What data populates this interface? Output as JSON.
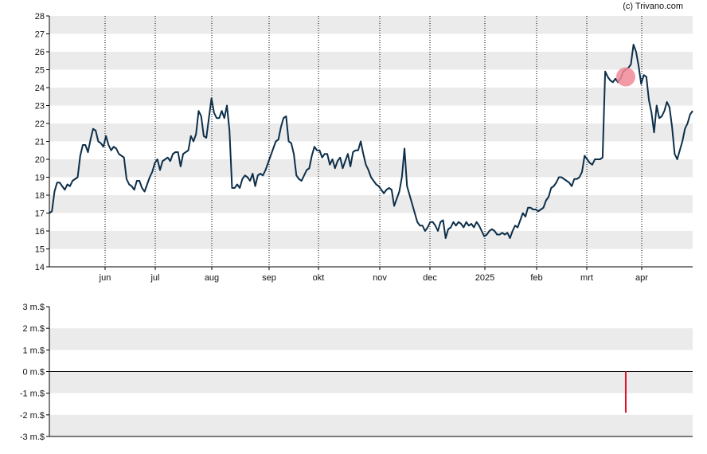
{
  "copyright": "(c) Trivano.com",
  "colors": {
    "price_line": "#0d2f4a",
    "band": "#ebebeb",
    "marker": "#f08a96",
    "bar": "#e0102a",
    "axis": "#000000",
    "vline": "#000000"
  },
  "chart_data": [
    {
      "type": "line",
      "title": "",
      "xlabel": "",
      "ylabel": "",
      "ylim": [
        14,
        28
      ],
      "y_ticks": [
        "14",
        "15",
        "16",
        "17",
        "18",
        "19",
        "20",
        "21",
        "22",
        "23",
        "24",
        "25",
        "26",
        "27",
        "28"
      ],
      "x_ticks": [
        "jun",
        "jul",
        "aug",
        "sep",
        "okt",
        "nov",
        "dec",
        "2025",
        "feb",
        "mrt",
        "apr"
      ],
      "grid": "alternating horizontal bands, dotted vertical lines at month starts",
      "series": [
        {
          "values": [
            17.0,
            17.1,
            18.2,
            18.7,
            18.7,
            18.5,
            18.3,
            18.6,
            18.5,
            18.8,
            18.9,
            19.0,
            20.2,
            20.8,
            20.8,
            20.4,
            21.1,
            21.7,
            21.6,
            21.0,
            20.9,
            20.7,
            21.3,
            20.8,
            20.5,
            20.7,
            20.6,
            20.3,
            20.2,
            20.1,
            18.9,
            18.6,
            18.5,
            18.3,
            18.8,
            18.8,
            18.4,
            18.2,
            18.6,
            19.0,
            19.3,
            19.8,
            20.0,
            19.4,
            19.9,
            20.0,
            20.1,
            19.9,
            20.3,
            20.4,
            20.4,
            19.6,
            20.3,
            20.4,
            20.5,
            21.3,
            21.0,
            21.4,
            22.7,
            22.4,
            21.3,
            21.2,
            22.3,
            23.4,
            22.6,
            22.3,
            22.3,
            22.7,
            22.3,
            23.0,
            21.6,
            18.4,
            18.4,
            18.6,
            18.4,
            18.9,
            19.1,
            19.0,
            18.8,
            19.2,
            18.5,
            19.1,
            19.2,
            19.1,
            19.4,
            19.8,
            20.2,
            20.6,
            21.0,
            21.1,
            21.8,
            22.3,
            22.4,
            21.0,
            20.9,
            20.3,
            19.1,
            18.9,
            18.8,
            19.1,
            19.4,
            19.5,
            20.2,
            20.7,
            20.5,
            20.5,
            20.1,
            20.3,
            20.3,
            19.7,
            20.0,
            19.5,
            19.9,
            20.1,
            19.5,
            19.9,
            20.3,
            19.6,
            20.4,
            20.5,
            20.5,
            21.0,
            20.3,
            19.7,
            19.4,
            19.0,
            18.8,
            18.6,
            18.5,
            18.3,
            18.1,
            18.3,
            18.4,
            18.3,
            17.4,
            17.8,
            18.2,
            19.0,
            20.6,
            18.5,
            18.0,
            17.5,
            17.0,
            16.5,
            16.3,
            16.3,
            16.0,
            16.2,
            16.5,
            16.5,
            16.3,
            16.0,
            16.5,
            16.6,
            15.6,
            16.1,
            16.2,
            16.5,
            16.3,
            16.5,
            16.4,
            16.2,
            16.5,
            16.3,
            16.4,
            16.2,
            16.5,
            16.3,
            16.0,
            15.7,
            15.8,
            16.0,
            16.1,
            16.0,
            15.8,
            15.8,
            15.9,
            15.8,
            15.9,
            15.6,
            16.0,
            16.3,
            16.2,
            16.6,
            17.0,
            16.8,
            17.3,
            17.3,
            17.2,
            17.2,
            17.1,
            17.2,
            17.3,
            17.7,
            17.9,
            18.4,
            18.5,
            18.7,
            19.0,
            19.0,
            18.9,
            18.8,
            18.7,
            18.5,
            18.9,
            18.9,
            19.0,
            19.3,
            20.2,
            20.0,
            19.8,
            19.7,
            20.0,
            20.0,
            20.0,
            20.1,
            24.9,
            24.6,
            24.4,
            24.3,
            24.5,
            24.3,
            24.5,
            24.9,
            25.0,
            25.1,
            25.3,
            26.4,
            26.0,
            25.2,
            24.2,
            24.7,
            24.6,
            23.3,
            22.6,
            21.5,
            23.0,
            22.3,
            22.4,
            22.7,
            23.2,
            22.9,
            21.8,
            20.3,
            20.0,
            20.5,
            21.0,
            21.7,
            22.0,
            22.5,
            22.7
          ]
        }
      ],
      "markers": [
        {
          "index": 224,
          "value": 24.6
        }
      ]
    },
    {
      "type": "bar",
      "title": "",
      "ylim": [
        -3,
        3
      ],
      "y_ticks": [
        "3 m.$",
        "2 m.$",
        "1 m.$",
        "0 m.$",
        "-1 m.$",
        "-2 m.$",
        "-3 m.$"
      ],
      "values": [
        {
          "index": 224,
          "value": -1.9
        }
      ]
    }
  ]
}
